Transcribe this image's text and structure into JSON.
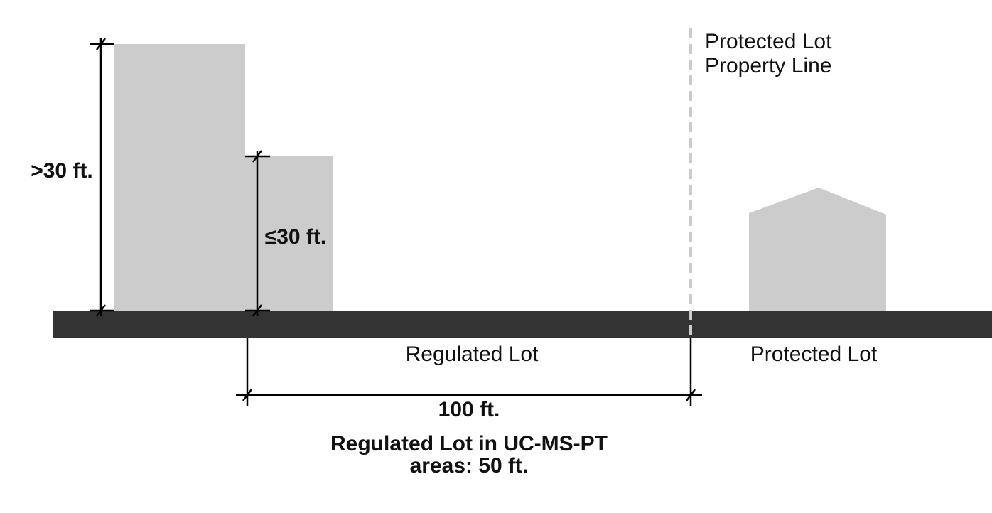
{
  "property_line_label": [
    "Protected Lot",
    "Property Line"
  ],
  "tall_height_label": ">30 ft.",
  "short_height_label": "≤30 ft.",
  "regulated_lot_label": "Regulated Lot",
  "protected_lot_label": "Protected Lot",
  "distance_label": "100 ft.",
  "note": [
    "Regulated Lot in UC-MS-PT",
    "areas: 50 ft."
  ]
}
